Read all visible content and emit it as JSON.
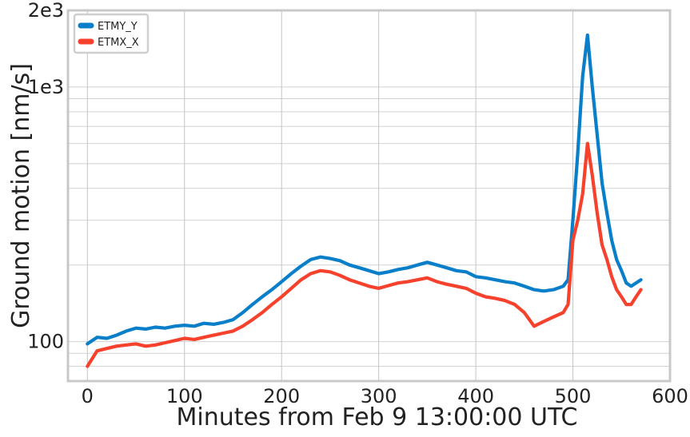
{
  "chart_data": {
    "type": "line",
    "xlabel": "Minutes from Feb 9 13:00:00 UTC",
    "ylabel": "Ground motion [nm/s]",
    "xlim": [
      -20,
      600
    ],
    "ylim": [
      70,
      2000
    ],
    "yscale": "log",
    "grid": true,
    "legend_position": "top-left",
    "x_ticks": [
      0,
      100,
      200,
      300,
      400,
      500,
      600
    ],
    "x_tick_labels": [
      "0",
      "100",
      "200",
      "300",
      "400",
      "500",
      "600"
    ],
    "y_ticks": [
      100,
      1000,
      2000
    ],
    "y_tick_labels": [
      "100",
      "1e3",
      "2e3"
    ],
    "series": [
      {
        "name": "ETMY_Y",
        "color": "#0a7fc9",
        "x": [
          0,
          10,
          20,
          30,
          40,
          50,
          60,
          70,
          80,
          90,
          100,
          110,
          120,
          130,
          140,
          150,
          160,
          170,
          180,
          190,
          200,
          210,
          220,
          230,
          240,
          250,
          260,
          270,
          280,
          290,
          300,
          310,
          320,
          330,
          340,
          350,
          360,
          370,
          380,
          390,
          400,
          410,
          420,
          430,
          440,
          450,
          460,
          470,
          480,
          490,
          495,
          500,
          505,
          510,
          515,
          520,
          525,
          530,
          535,
          540,
          545,
          550,
          555,
          560,
          565,
          570
        ],
        "values": [
          98,
          104,
          103,
          106,
          110,
          113,
          112,
          114,
          113,
          115,
          116,
          115,
          118,
          117,
          119,
          122,
          130,
          140,
          150,
          160,
          172,
          185,
          198,
          210,
          215,
          212,
          208,
          200,
          195,
          190,
          185,
          188,
          192,
          195,
          200,
          205,
          200,
          195,
          190,
          188,
          180,
          178,
          175,
          172,
          170,
          165,
          160,
          158,
          160,
          165,
          175,
          300,
          550,
          1100,
          1600,
          1000,
          650,
          420,
          320,
          250,
          210,
          190,
          170,
          165,
          170,
          175
        ]
      },
      {
        "name": "ETMX_X",
        "color": "#f6412d",
        "x": [
          0,
          10,
          20,
          30,
          40,
          50,
          60,
          70,
          80,
          90,
          100,
          110,
          120,
          130,
          140,
          150,
          160,
          170,
          180,
          190,
          200,
          210,
          220,
          230,
          240,
          250,
          260,
          270,
          280,
          290,
          300,
          310,
          320,
          330,
          340,
          350,
          360,
          370,
          380,
          390,
          400,
          410,
          420,
          430,
          440,
          450,
          460,
          470,
          480,
          490,
          495,
          500,
          505,
          510,
          515,
          520,
          525,
          530,
          535,
          540,
          545,
          550,
          555,
          560,
          565,
          570
        ],
        "values": [
          80,
          92,
          94,
          96,
          97,
          98,
          96,
          97,
          99,
          101,
          103,
          102,
          104,
          106,
          108,
          110,
          115,
          122,
          130,
          140,
          150,
          162,
          175,
          185,
          190,
          188,
          182,
          175,
          170,
          165,
          162,
          166,
          170,
          172,
          175,
          178,
          172,
          168,
          165,
          162,
          155,
          150,
          148,
          145,
          140,
          130,
          115,
          120,
          125,
          130,
          140,
          250,
          300,
          380,
          600,
          450,
          320,
          240,
          210,
          180,
          160,
          150,
          140,
          140,
          150,
          160
        ]
      }
    ]
  }
}
